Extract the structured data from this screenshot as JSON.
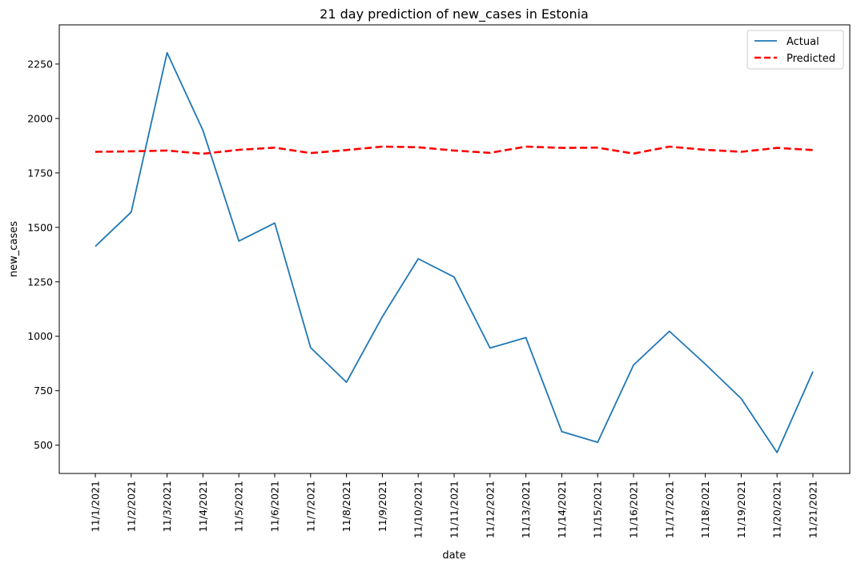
{
  "chart_data": {
    "type": "line",
    "title": "21 day prediction of new_cases in Estonia",
    "xlabel": "date",
    "ylabel": "new_cases",
    "categories": [
      "11/1/2021",
      "11/2/2021",
      "11/3/2021",
      "11/4/2021",
      "11/5/2021",
      "11/6/2021",
      "11/7/2021",
      "11/8/2021",
      "11/9/2021",
      "11/10/2021",
      "11/11/2021",
      "11/12/2021",
      "11/13/2021",
      "11/14/2021",
      "11/15/2021",
      "11/16/2021",
      "11/17/2021",
      "11/18/2021",
      "11/19/2021",
      "11/20/2021",
      "11/21/2021"
    ],
    "yticks": [
      500,
      750,
      1000,
      1250,
      1500,
      1750,
      2000,
      2250
    ],
    "ylim": [
      370,
      2430
    ],
    "grid": false,
    "legend_position": "top-right",
    "series": [
      {
        "name": "Actual",
        "color": "#1f77b4",
        "style": "solid",
        "values": [
          1413,
          1570,
          2302,
          1945,
          1437,
          1520,
          948,
          789,
          1090,
          1356,
          1272,
          946,
          994,
          562,
          513,
          868,
          1023,
          872,
          714,
          466,
          838
        ]
      },
      {
        "name": "Predicted",
        "color": "#ff0000",
        "style": "dashed",
        "values": [
          1847,
          1849,
          1853,
          1838,
          1856,
          1866,
          1841,
          1855,
          1871,
          1868,
          1853,
          1842,
          1871,
          1865,
          1866,
          1839,
          1871,
          1856,
          1847,
          1865,
          1855
        ]
      }
    ]
  }
}
